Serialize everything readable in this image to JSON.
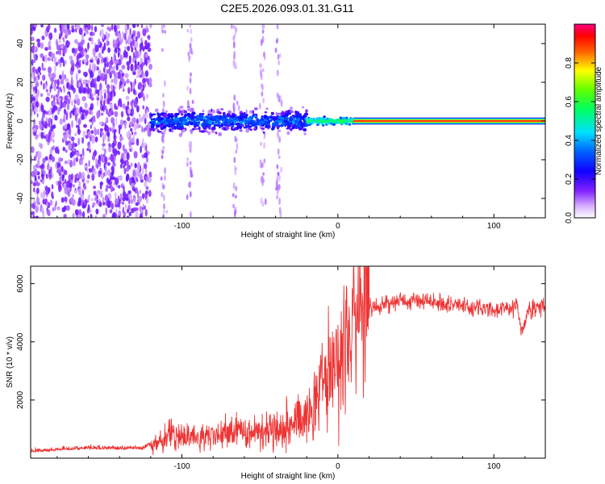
{
  "title": "C2E5.2026.093.01.31.G11",
  "chart_data": [
    {
      "type": "heatmap",
      "xlabel": "Height of straight line (km)",
      "ylabel": "Frequency (Hz)",
      "xlim": [
        -197,
        133
      ],
      "ylim": [
        -50,
        50
      ],
      "x_ticks": [
        -100,
        0,
        100
      ],
      "y_ticks": [
        -40,
        -20,
        0,
        20,
        40
      ],
      "grid": false,
      "colorbar": {
        "label": "Normalized spectral amplitude",
        "range": [
          0,
          1
        ],
        "ticks": [
          "0.0",
          "0.2",
          "0.4",
          "0.6",
          "0.8"
        ],
        "colors": [
          "#ffffff",
          "#c080ff",
          "#6000ff",
          "#0000ff",
          "#00ffff",
          "#00ff00",
          "#ffff00",
          "#ff0000",
          "#ff00aa"
        ]
      },
      "regions": [
        {
          "x": [
            -197,
            -120
          ],
          "freq_spread_hz": 50,
          "amplitude": 0.12,
          "description_level": "noise"
        },
        {
          "x": [
            -120,
            -20
          ],
          "freq_spread_hz": 6,
          "amplitude": 0.35
        },
        {
          "x": [
            -20,
            10
          ],
          "freq_spread_hz": 2,
          "amplitude": 0.6
        },
        {
          "x": [
            10,
            133
          ],
          "freq_spread_hz": 0.6,
          "amplitude": 1.0
        }
      ]
    },
    {
      "type": "line",
      "xlabel": "Height of straight line (km)",
      "ylabel": "SNR (10 * v/v)",
      "xlim": [
        -197,
        133
      ],
      "ylim": [
        0,
        6600
      ],
      "x_ticks": [
        -100,
        0,
        100
      ],
      "y_ticks": [
        2000,
        4000,
        6000
      ],
      "grid": false,
      "series": [
        {
          "color": "#ee3333",
          "x": [
            -197,
            -180,
            -160,
            -140,
            -125,
            -115,
            -105,
            -95,
            -85,
            -75,
            -65,
            -55,
            -45,
            -35,
            -25,
            -20,
            -15,
            -10,
            -5,
            0,
            5,
            10,
            15,
            20,
            30,
            40,
            50,
            60,
            70,
            80,
            90,
            100,
            110,
            115,
            118,
            122,
            133
          ],
          "y": [
            200,
            250,
            300,
            300,
            300,
            600,
            800,
            750,
            700,
            850,
            900,
            950,
            1000,
            1100,
            1300,
            1600,
            2000,
            2500,
            3000,
            3500,
            4000,
            4500,
            4900,
            5100,
            5300,
            5400,
            5450,
            5400,
            5300,
            5250,
            5150,
            5100,
            5150,
            5300,
            4200,
            5100,
            5250
          ]
        }
      ]
    }
  ]
}
